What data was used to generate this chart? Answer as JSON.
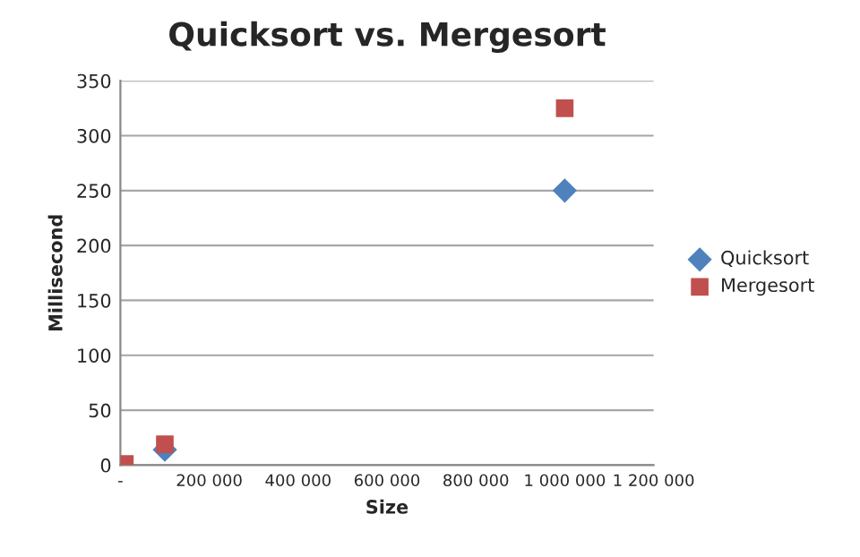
{
  "chart_data": {
    "type": "scatter",
    "title": "Quicksort vs. Mergesort",
    "xlabel": "Size",
    "ylabel": "Millisecond",
    "series": [
      {
        "name": "Quicksort",
        "color": "#4f81bd",
        "marker": "diamond",
        "x": [
          100000,
          1000000
        ],
        "values": [
          14,
          250
        ]
      },
      {
        "name": "Mergesort",
        "color": "#c0504d",
        "marker": "square",
        "x": [
          10000,
          100000,
          1000000
        ],
        "values": [
          1,
          19,
          325
        ]
      }
    ],
    "xlim": [
      0,
      1200000
    ],
    "xticks": [
      {
        "value": 0,
        "label": "-"
      },
      {
        "value": 200000,
        "label": "200 000"
      },
      {
        "value": 400000,
        "label": "400 000"
      },
      {
        "value": 600000,
        "label": "600 000"
      },
      {
        "value": 800000,
        "label": "800 000"
      },
      {
        "value": 1000000,
        "label": "1 000 000"
      },
      {
        "value": 1200000,
        "label": "1 200 000"
      }
    ],
    "ylim": [
      0,
      350
    ],
    "yticks": [
      0,
      50,
      100,
      150,
      200,
      250,
      300,
      350
    ],
    "grid": "y",
    "legend": "right"
  }
}
